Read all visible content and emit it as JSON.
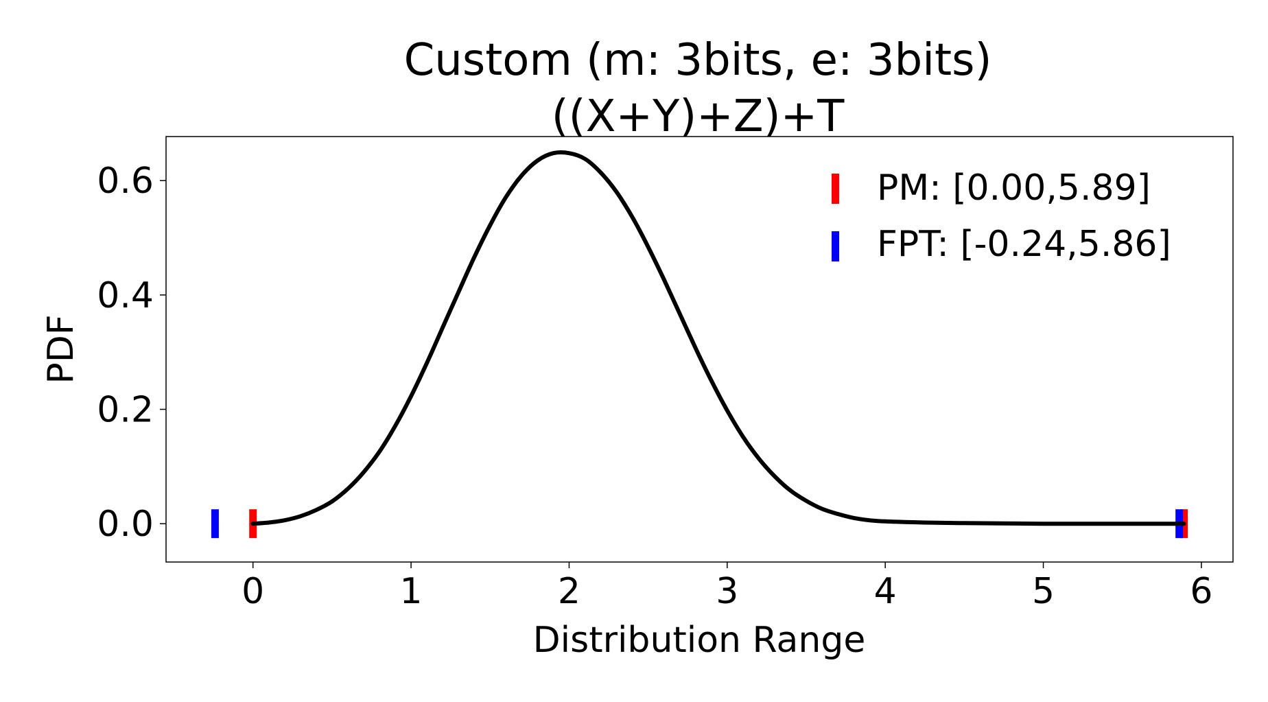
{
  "chart_data": {
    "type": "line",
    "title_lines": [
      "Custom (m: 3bits, e: 3bits)",
      "((X+Y)+Z)+T"
    ],
    "xlabel": "Distribution Range",
    "ylabel": "PDF",
    "xlim": [
      -0.55,
      6.2
    ],
    "ylim": [
      -0.067,
      0.677
    ],
    "x_ticks": [
      0,
      1,
      2,
      3,
      4,
      5,
      6
    ],
    "x_tick_labels": [
      "0",
      "1",
      "2",
      "3",
      "4",
      "5",
      "6"
    ],
    "y_ticks": [
      0.0,
      0.2,
      0.4,
      0.6
    ],
    "y_tick_labels": [
      "0.0",
      "0.2",
      "0.4",
      "0.6"
    ],
    "grid": false,
    "legend_position": "top-right",
    "series": [
      {
        "color": "#000000",
        "x": [
          0.0,
          0.1,
          0.2,
          0.3,
          0.4,
          0.5,
          0.6,
          0.7,
          0.8,
          0.9,
          1.0,
          1.1,
          1.2,
          1.3,
          1.4,
          1.5,
          1.6,
          1.7,
          1.8,
          1.9,
          2.0,
          2.1,
          2.2,
          2.3,
          2.4,
          2.5,
          2.6,
          2.7,
          2.8,
          2.9,
          3.0,
          3.1,
          3.2,
          3.3,
          3.4,
          3.5,
          3.6,
          3.7,
          3.8,
          3.9,
          4.0,
          4.25,
          4.5,
          4.75,
          5.0,
          5.5,
          5.89
        ],
        "y": [
          0.0,
          0.002,
          0.006,
          0.013,
          0.024,
          0.039,
          0.061,
          0.09,
          0.126,
          0.171,
          0.223,
          0.281,
          0.343,
          0.405,
          0.466,
          0.522,
          0.571,
          0.609,
          0.635,
          0.648,
          0.648,
          0.638,
          0.614,
          0.58,
          0.536,
          0.484,
          0.427,
          0.367,
          0.307,
          0.25,
          0.198,
          0.152,
          0.114,
          0.083,
          0.058,
          0.04,
          0.026,
          0.017,
          0.01,
          0.006,
          0.004,
          0.002,
          0.001,
          0.0005,
          0.0,
          0.0,
          0.0
        ]
      }
    ],
    "intervals": [
      {
        "name": "PM: [0.00,5.89]",
        "color": "#ff0000",
        "low": 0.0,
        "high": 5.89
      },
      {
        "name": "FPT: [-0.24,5.86]",
        "color": "#0000ff",
        "low": -0.24,
        "high": 5.86
      }
    ]
  }
}
